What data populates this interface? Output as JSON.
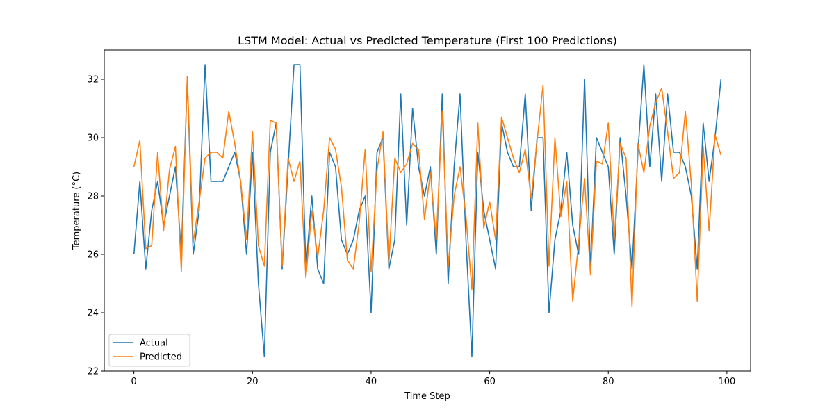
{
  "chart_data": {
    "type": "line",
    "title": "LSTM Model: Actual vs Predicted Temperature (First 100 Predictions)",
    "xlabel": "Time Step",
    "ylabel": "Temperature (°C)",
    "xlim": [
      -5,
      104
    ],
    "ylim": [
      22,
      33
    ],
    "xticks": [
      0,
      20,
      40,
      60,
      80,
      100
    ],
    "yticks": [
      22,
      24,
      26,
      28,
      30,
      32
    ],
    "grid": false,
    "legend": "lower-left",
    "series": [
      {
        "name": "Actual",
        "color": "#1f77b4",
        "values": [
          26.0,
          28.5,
          25.5,
          27.5,
          28.5,
          27.0,
          28.0,
          29.0,
          26.0,
          32.0,
          26.0,
          27.5,
          32.5,
          28.5,
          28.5,
          28.5,
          29.0,
          29.5,
          28.5,
          26.0,
          29.5,
          25.0,
          22.5,
          29.5,
          30.5,
          25.5,
          29.0,
          32.5,
          32.5,
          25.5,
          28.0,
          25.5,
          25.0,
          29.5,
          29.0,
          26.5,
          26.0,
          26.5,
          27.5,
          28.0,
          24.0,
          29.5,
          30.0,
          25.5,
          26.5,
          31.5,
          27.0,
          31.0,
          29.0,
          28.0,
          29.0,
          26.0,
          31.5,
          25.0,
          29.0,
          31.5,
          26.5,
          22.5,
          29.5,
          27.5,
          26.5,
          25.5,
          30.5,
          29.5,
          29.0,
          29.0,
          31.5,
          27.5,
          30.0,
          30.0,
          24.0,
          26.5,
          27.5,
          29.5,
          27.0,
          26.0,
          32.0,
          25.5,
          30.0,
          29.5,
          29.0,
          26.0,
          30.0,
          28.0,
          25.5,
          29.5,
          32.5,
          29.0,
          31.5,
          28.5,
          31.5,
          29.5,
          29.5,
          29.0,
          28.0,
          25.5,
          30.5,
          28.5,
          30.0,
          32.0
        ]
      },
      {
        "name": "Predicted",
        "color": "#ff7f0e",
        "values": [
          29.0,
          29.9,
          26.2,
          26.3,
          29.5,
          26.8,
          28.9,
          29.7,
          25.4,
          32.1,
          26.4,
          27.8,
          29.3,
          29.5,
          29.5,
          29.3,
          30.9,
          29.8,
          28.5,
          26.5,
          30.2,
          26.3,
          25.6,
          30.6,
          30.5,
          25.6,
          29.3,
          28.5,
          29.2,
          25.2,
          27.5,
          25.9,
          27.5,
          30.0,
          29.6,
          28.3,
          25.8,
          25.5,
          27.1,
          29.6,
          25.4,
          28.9,
          30.2,
          25.7,
          29.3,
          28.8,
          29.1,
          29.8,
          29.6,
          27.2,
          28.8,
          26.5,
          30.9,
          25.6,
          28.0,
          29.0,
          27.3,
          24.8,
          30.5,
          26.9,
          27.8,
          26.5,
          30.7,
          30.0,
          29.3,
          28.8,
          29.6,
          27.9,
          29.9,
          31.8,
          25.6,
          30.0,
          27.3,
          28.5,
          24.4,
          26.4,
          28.6,
          25.3,
          29.2,
          29.1,
          30.5,
          26.5,
          29.8,
          29.3,
          24.2,
          29.8,
          28.8,
          30.4,
          31.2,
          31.7,
          30.2,
          28.6,
          28.8,
          30.9,
          28.4,
          24.4,
          29.7,
          26.8,
          30.1,
          29.4
        ]
      }
    ]
  }
}
